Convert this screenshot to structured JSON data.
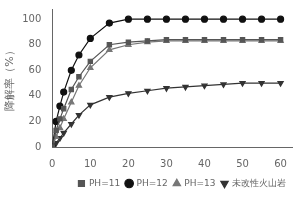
{
  "chart_data": {
    "type": "line",
    "ylabel": "降解率（%）",
    "x": [
      0,
      1,
      2,
      3,
      5,
      7,
      10,
      15,
      20,
      25,
      30,
      35,
      40,
      45,
      50,
      55,
      60
    ],
    "series": [
      {
        "name": "PH=11",
        "color": "#555555",
        "marker": "square",
        "values": [
          0,
          13,
          22,
          30,
          45,
          55,
          67,
          80,
          82,
          83,
          84,
          84,
          84,
          84,
          84,
          84,
          84
        ]
      },
      {
        "name": "PH=12",
        "color": "#111111",
        "marker": "circle",
        "values": [
          0,
          20,
          32,
          43,
          60,
          72,
          85,
          97,
          100,
          100,
          100,
          100,
          100,
          100,
          100,
          100,
          100
        ]
      },
      {
        "name": "PH=13",
        "color": "#777777",
        "marker": "triangle_up",
        "values": [
          0,
          8,
          15,
          22,
          35,
          48,
          62,
          76,
          80,
          82,
          83,
          83,
          83,
          83,
          83,
          83,
          83
        ]
      },
      {
        "name": "未改性火山岩",
        "color": "#333333",
        "marker": "triangle_down",
        "values": [
          0,
          3,
          7,
          11,
          18,
          25,
          33,
          39,
          42,
          44,
          46,
          47,
          48,
          49,
          50,
          50,
          50
        ]
      }
    ],
    "xlim": [
      0,
      63
    ],
    "ylim": [
      0,
      108
    ],
    "xticks": [
      0,
      10,
      20,
      30,
      40,
      50,
      60
    ],
    "yticks": [
      0,
      20,
      40,
      60,
      80,
      100
    ],
    "grid": false,
    "legend": "lower right"
  }
}
